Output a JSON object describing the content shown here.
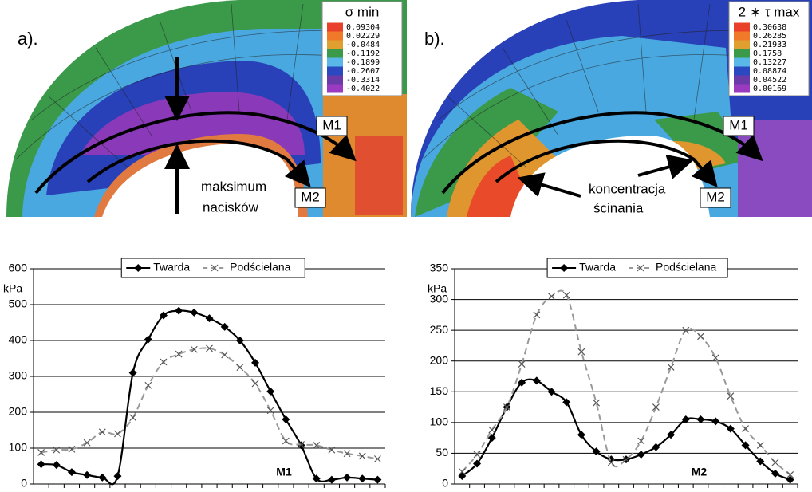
{
  "panels": [
    {
      "label": "a).",
      "scale_title": "σ min",
      "scale_labels": [
        "0.09304",
        "0.02229",
        "-0.0484",
        "-0.1192",
        "-0.1899",
        "-0.2607",
        "-0.3314",
        "-0.4022"
      ],
      "scale_colors": [
        "#e8402a",
        "#f07a2a",
        "#e0a030",
        "#3a9a4a",
        "#5ab8e8",
        "#2a48c0",
        "#6a3aa8",
        "#9a3ac0"
      ],
      "arrow_labels": [
        "M1",
        "M2"
      ],
      "annotation": [
        "maksimum",
        "nacisków"
      ]
    },
    {
      "label": "b).",
      "scale_title": "2 ∗ τ max",
      "scale_labels": [
        "0.30638",
        "0.26285",
        "0.21933",
        "0.1758",
        "0.13227",
        "0.08874",
        "0.04522",
        "0.00169"
      ],
      "scale_colors": [
        "#e8402a",
        "#f07a2a",
        "#e0a030",
        "#3a9a4a",
        "#5ab8e8",
        "#2a48c0",
        "#6a3aa8",
        "#9a3ac0"
      ],
      "arrow_labels": [
        "M1",
        "M2"
      ],
      "annotation": [
        "koncentracja",
        "ścinania"
      ]
    }
  ],
  "chart_data": [
    {
      "type": "line",
      "y_label": "kPa",
      "annotation": "M1",
      "categories": [
        null,
        null,
        null,
        null,
        null,
        null,
        null,
        null,
        null,
        null,
        null,
        null,
        null,
        null,
        null,
        null,
        null,
        null,
        null,
        null,
        null,
        null,
        null
      ],
      "series": [
        {
          "name": "Twarda",
          "color": "#000000",
          "marker": "diamond",
          "dashed": false,
          "values": [
            55,
            53,
            33,
            25,
            18,
            22,
            310,
            403,
            470,
            483,
            478,
            462,
            438,
            400,
            338,
            258,
            180,
            108,
            15,
            12,
            18,
            15,
            12
          ]
        },
        {
          "name": "Podścielana",
          "color": "#999999",
          "marker": "x",
          "dashed": true,
          "values": [
            88,
            95,
            97,
            115,
            145,
            140,
            185,
            275,
            340,
            362,
            375,
            378,
            360,
            325,
            280,
            205,
            120,
            110,
            108,
            95,
            85,
            78,
            70
          ]
        }
      ],
      "ylim": [
        0,
        600
      ],
      "yticks": [
        0,
        100,
        200,
        300,
        400,
        500,
        600
      ],
      "grid": true
    },
    {
      "type": "line",
      "y_label": "kPa",
      "annotation": "M2",
      "categories": [
        null,
        null,
        null,
        null,
        null,
        null,
        null,
        null,
        null,
        null,
        null,
        null,
        null,
        null,
        null,
        null,
        null,
        null,
        null,
        null,
        null,
        null,
        null
      ],
      "series": [
        {
          "name": "Twarda",
          "color": "#000000",
          "marker": "diamond",
          "dashed": false,
          "values": [
            13,
            33,
            75,
            125,
            165,
            168,
            150,
            133,
            80,
            53,
            40,
            40,
            48,
            60,
            80,
            105,
            105,
            102,
            90,
            63,
            37,
            17,
            7
          ]
        },
        {
          "name": "Podścielana",
          "color": "#999999",
          "marker": "x",
          "dashed": true,
          "values": [
            20,
            48,
            88,
            125,
            195,
            275,
            305,
            307,
            215,
            132,
            35,
            40,
            70,
            125,
            190,
            250,
            240,
            205,
            143,
            90,
            63,
            35,
            15
          ]
        }
      ],
      "ylim": [
        0,
        350
      ],
      "yticks": [
        0,
        50,
        100,
        150,
        200,
        250,
        300,
        350
      ],
      "grid": true
    }
  ]
}
